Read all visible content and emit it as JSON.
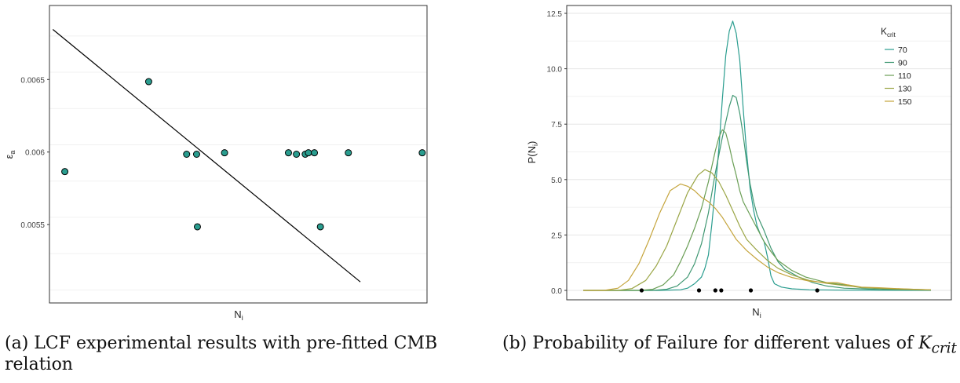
{
  "chart_data": [
    {
      "type": "scatter",
      "xlabel": "N",
      "xlabel_sub": "i",
      "ylabel": "ε",
      "ylabel_sub": "a",
      "yticks": [
        0.0055,
        0.006,
        0.0065
      ],
      "ytick_labels": [
        "0.0055",
        "0.006",
        "0.0065"
      ],
      "grid": true,
      "points": [
        {
          "x": 0.08,
          "y": 0.005865
        },
        {
          "x": 0.29,
          "y": 0.006485
        },
        {
          "x": 0.385,
          "y": 0.005985
        },
        {
          "x": 0.41,
          "y": 0.005985
        },
        {
          "x": 0.412,
          "y": 0.005485
        },
        {
          "x": 0.48,
          "y": 0.005995
        },
        {
          "x": 0.64,
          "y": 0.005995
        },
        {
          "x": 0.66,
          "y": 0.005985
        },
        {
          "x": 0.682,
          "y": 0.005985
        },
        {
          "x": 0.69,
          "y": 0.005995
        },
        {
          "x": 0.705,
          "y": 0.005995
        },
        {
          "x": 0.72,
          "y": 0.005485
        },
        {
          "x": 0.79,
          "y": 0.005995
        },
        {
          "x": 0.975,
          "y": 0.005995
        }
      ],
      "fit_line": {
        "x": [
          0.05,
          0.82
        ],
        "y": [
          0.006845,
          0.005105
        ]
      },
      "marker_color": "#2a9d8f",
      "caption": "(a) LCF experimental results with pre-fitted CMB relation"
    },
    {
      "type": "line",
      "xlabel": "N",
      "xlabel_sub": "i",
      "ylabel": "P(N",
      "ylabel_sub": "i",
      "ylabel_suffix": ")",
      "ylim": [
        0,
        12.5
      ],
      "yticks": [
        0,
        2.5,
        5,
        7.5,
        10,
        12.5
      ],
      "ytick_labels": [
        "0.0",
        "2.5",
        "5.0",
        "7.5",
        "10.0",
        "12.5"
      ],
      "grid": true,
      "legend": {
        "title": "K",
        "title_sub": "crit",
        "placement": "top-right"
      },
      "series": [
        {
          "name": "70",
          "color": "#2a9d8f",
          "points": [
            [
              0,
              0
            ],
            [
              0.22,
              0
            ],
            [
              0.28,
              0.03
            ],
            [
              0.3,
              0.1
            ],
            [
              0.32,
              0.3
            ],
            [
              0.34,
              0.6
            ],
            [
              0.35,
              1.0
            ],
            [
              0.36,
              1.6
            ],
            [
              0.37,
              3.0
            ],
            [
              0.38,
              4.6
            ],
            [
              0.39,
              6.4
            ],
            [
              0.4,
              8.6
            ],
            [
              0.41,
              10.6
            ],
            [
              0.42,
              11.7
            ],
            [
              0.43,
              12.15
            ],
            [
              0.44,
              11.6
            ],
            [
              0.45,
              10.4
            ],
            [
              0.46,
              8.2
            ],
            [
              0.47,
              6.2
            ],
            [
              0.48,
              4.6
            ],
            [
              0.49,
              3.6
            ],
            [
              0.5,
              2.9
            ],
            [
              0.51,
              2.5
            ],
            [
              0.52,
              2.2
            ],
            [
              0.53,
              1.5
            ],
            [
              0.54,
              0.65
            ],
            [
              0.55,
              0.3
            ],
            [
              0.57,
              0.15
            ],
            [
              0.6,
              0.07
            ],
            [
              0.65,
              0.03
            ],
            [
              0.75,
              0.01
            ],
            [
              1,
              0
            ]
          ]
        },
        {
          "name": "90",
          "color": "#3f9772",
          "points": [
            [
              0,
              0
            ],
            [
              0.2,
              0
            ],
            [
              0.24,
              0.05
            ],
            [
              0.27,
              0.2
            ],
            [
              0.3,
              0.6
            ],
            [
              0.32,
              1.2
            ],
            [
              0.34,
              2.1
            ],
            [
              0.36,
              3.5
            ],
            [
              0.38,
              5.3
            ],
            [
              0.4,
              6.9
            ],
            [
              0.41,
              7.6
            ],
            [
              0.42,
              8.3
            ],
            [
              0.43,
              8.8
            ],
            [
              0.44,
              8.7
            ],
            [
              0.45,
              8.0
            ],
            [
              0.46,
              7.0
            ],
            [
              0.47,
              5.8
            ],
            [
              0.48,
              4.8
            ],
            [
              0.49,
              4.0
            ],
            [
              0.5,
              3.4
            ],
            [
              0.52,
              2.7
            ],
            [
              0.54,
              1.9
            ],
            [
              0.56,
              1.3
            ],
            [
              0.58,
              0.95
            ],
            [
              0.62,
              0.6
            ],
            [
              0.66,
              0.35
            ],
            [
              0.7,
              0.2
            ],
            [
              0.75,
              0.1
            ],
            [
              0.85,
              0.04
            ],
            [
              1,
              0.01
            ]
          ]
        },
        {
          "name": "110",
          "color": "#6a9e55",
          "points": [
            [
              0,
              0
            ],
            [
              0.16,
              0
            ],
            [
              0.2,
              0.05
            ],
            [
              0.23,
              0.25
            ],
            [
              0.26,
              0.7
            ],
            [
              0.28,
              1.3
            ],
            [
              0.3,
              2.0
            ],
            [
              0.32,
              2.8
            ],
            [
              0.34,
              3.7
            ],
            [
              0.36,
              4.9
            ],
            [
              0.38,
              6.3
            ],
            [
              0.39,
              6.9
            ],
            [
              0.4,
              7.25
            ],
            [
              0.41,
              7.1
            ],
            [
              0.42,
              6.5
            ],
            [
              0.43,
              5.8
            ],
            [
              0.44,
              5.2
            ],
            [
              0.45,
              4.5
            ],
            [
              0.46,
              4.0
            ],
            [
              0.48,
              3.4
            ],
            [
              0.5,
              2.8
            ],
            [
              0.52,
              2.2
            ],
            [
              0.54,
              1.75
            ],
            [
              0.56,
              1.35
            ],
            [
              0.6,
              0.9
            ],
            [
              0.64,
              0.6
            ],
            [
              0.7,
              0.35
            ],
            [
              0.75,
              0.25
            ],
            [
              0.8,
              0.12
            ],
            [
              0.9,
              0.05
            ],
            [
              1,
              0.02
            ]
          ]
        },
        {
          "name": "130",
          "color": "#9aa545",
          "points": [
            [
              0,
              0
            ],
            [
              0.1,
              0
            ],
            [
              0.14,
              0.08
            ],
            [
              0.18,
              0.45
            ],
            [
              0.21,
              1.1
            ],
            [
              0.24,
              2.0
            ],
            [
              0.27,
              3.2
            ],
            [
              0.3,
              4.4
            ],
            [
              0.33,
              5.2
            ],
            [
              0.35,
              5.45
            ],
            [
              0.37,
              5.3
            ],
            [
              0.39,
              4.9
            ],
            [
              0.41,
              4.3
            ],
            [
              0.43,
              3.6
            ],
            [
              0.45,
              2.9
            ],
            [
              0.47,
              2.3
            ],
            [
              0.5,
              1.8
            ],
            [
              0.53,
              1.35
            ],
            [
              0.56,
              1.0
            ],
            [
              0.6,
              0.7
            ],
            [
              0.65,
              0.45
            ],
            [
              0.7,
              0.32
            ],
            [
              0.75,
              0.22
            ],
            [
              0.8,
              0.14
            ],
            [
              0.85,
              0.1
            ],
            [
              0.9,
              0.07
            ],
            [
              0.95,
              0.05
            ],
            [
              1,
              0.03
            ]
          ]
        },
        {
          "name": "150",
          "color": "#c5a53d",
          "points": [
            [
              0,
              0
            ],
            [
              0.06,
              0
            ],
            [
              0.1,
              0.1
            ],
            [
              0.13,
              0.45
            ],
            [
              0.16,
              1.2
            ],
            [
              0.19,
              2.3
            ],
            [
              0.22,
              3.5
            ],
            [
              0.25,
              4.5
            ],
            [
              0.28,
              4.8
            ],
            [
              0.3,
              4.7
            ],
            [
              0.32,
              4.5
            ],
            [
              0.34,
              4.2
            ],
            [
              0.36,
              4.0
            ],
            [
              0.38,
              3.7
            ],
            [
              0.4,
              3.3
            ],
            [
              0.42,
              2.8
            ],
            [
              0.44,
              2.3
            ],
            [
              0.47,
              1.8
            ],
            [
              0.5,
              1.4
            ],
            [
              0.53,
              1.05
            ],
            [
              0.56,
              0.8
            ],
            [
              0.6,
              0.58
            ],
            [
              0.65,
              0.42
            ],
            [
              0.7,
              0.35
            ],
            [
              0.73,
              0.35
            ],
            [
              0.76,
              0.25
            ],
            [
              0.8,
              0.15
            ],
            [
              0.85,
              0.12
            ],
            [
              0.9,
              0.08
            ],
            [
              0.95,
              0.05
            ],
            [
              1,
              0.02
            ]
          ]
        }
      ],
      "observations": [
        0.168,
        0.333,
        0.38,
        0.397,
        0.482,
        0.673
      ],
      "caption_main": "(b) Probability of Failure for different values of ",
      "caption_var": "K",
      "caption_var_sub": "crit"
    }
  ]
}
